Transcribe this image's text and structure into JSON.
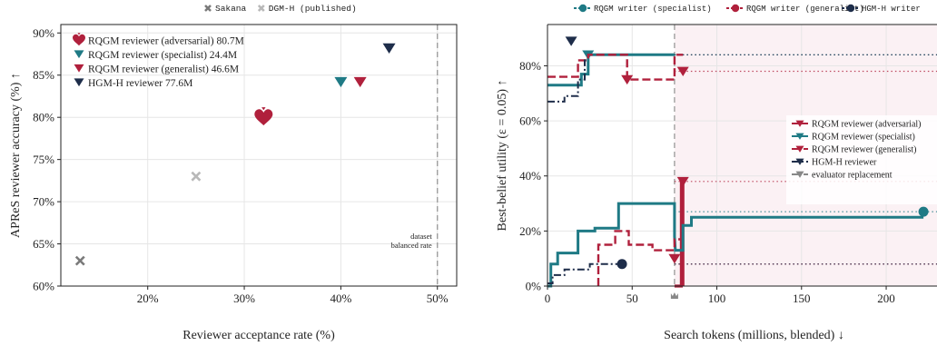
{
  "top_legends": {
    "left": [
      {
        "label": "Sakana",
        "color": "#7a7a7a",
        "marker": "x"
      },
      {
        "label": "DGM-H (published)",
        "color": "#b8b8b8",
        "marker": "x"
      }
    ],
    "right": [
      {
        "label": "RQGM writer (specialist)",
        "color": "#1f7a85",
        "marker": "circle"
      },
      {
        "label": "RQGM writer (generalist)",
        "color": "#b0203c",
        "marker": "circle"
      },
      {
        "label": "HGM-H writer",
        "color": "#1e2d4a",
        "marker": "circle"
      }
    ]
  },
  "chart_data": [
    {
      "type": "scatter",
      "xlabel": "Reviewer acceptance rate (%)",
      "ylabel": "APReS reviewer accuracy (%) ↑",
      "xlim": [
        11,
        52
      ],
      "ylim": [
        60,
        91
      ],
      "xticks": [
        20,
        30,
        40,
        50
      ],
      "yticks": [
        60,
        65,
        70,
        75,
        80,
        85,
        90
      ],
      "grid": true,
      "legend_position": "top-left",
      "reference_line": {
        "x": 50,
        "label_lines": [
          "dataset",
          "balanced rate"
        ]
      },
      "series": [
        {
          "name": "RQGM reviewer (adversarial)",
          "legend_value": "80.7M",
          "marker": "heart",
          "color": "#b0203c",
          "points": [
            [
              32,
              80
            ]
          ]
        },
        {
          "name": "RQGM reviewer (specialist)",
          "legend_value": "24.4M",
          "marker": "triangle-down",
          "color": "#1f7a85",
          "points": [
            [
              40,
              84.2
            ]
          ]
        },
        {
          "name": "RQGM reviewer (generalist)",
          "legend_value": "46.6M",
          "marker": "triangle-down",
          "color": "#b0203c",
          "points": [
            [
              42,
              84.2
            ]
          ]
        },
        {
          "name": "HGM-H reviewer",
          "legend_value": "77.6M",
          "marker": "triangle-down",
          "color": "#1e2d4a",
          "points": [
            [
              45,
              88.2
            ]
          ]
        },
        {
          "name": "Sakana",
          "marker": "x",
          "color": "#7a7a7a",
          "points": [
            [
              13,
              63
            ]
          ]
        },
        {
          "name": "DGM-H (published)",
          "marker": "x",
          "color": "#b8b8b8",
          "points": [
            [
              25,
              73
            ]
          ]
        }
      ]
    },
    {
      "type": "line",
      "step": true,
      "xlabel": "Search tokens (millions, blended) ↓",
      "ylabel": "Best-belief utility (ε = 0.05) ↑",
      "xlim": [
        0,
        230
      ],
      "ylim": [
        0,
        95
      ],
      "xticks": [
        0,
        50,
        100,
        150,
        200
      ],
      "yticks": [
        0,
        20,
        40,
        60,
        80
      ],
      "ytick_suffix": "%",
      "grid": true,
      "legend_position": "right",
      "evaluator_replacement_x": 75,
      "series": [
        {
          "name": "RQGM reviewer (adversarial)",
          "color": "#b0203c",
          "dash": "solid",
          "width": 3.2,
          "points": [
            [
              75,
              0
            ],
            [
              79,
              0
            ],
            [
              79,
              38
            ],
            [
              80,
              38
            ],
            [
              80,
              0
            ]
          ],
          "markers": [
            [
              80,
              38,
              "v"
            ]
          ],
          "continuation": 38
        },
        {
          "name": "RQGM reviewer (specialist)",
          "color": "#1f7a85",
          "dash": "solid",
          "width": 3,
          "points": [
            [
              0,
              0
            ],
            [
              2,
              0
            ],
            [
              2,
              8
            ],
            [
              6,
              8
            ],
            [
              6,
              12
            ],
            [
              18,
              12
            ],
            [
              18,
              20
            ],
            [
              28,
              20
            ],
            [
              28,
              21
            ],
            [
              42,
              21
            ],
            [
              42,
              30
            ],
            [
              75,
              30
            ],
            [
              75,
              18
            ],
            [
              75.5,
              13
            ],
            [
              80,
              13
            ],
            [
              80,
              22
            ],
            [
              85,
              22
            ],
            [
              85,
              25
            ],
            [
              222,
              25
            ]
          ],
          "markers": [
            [
              222,
              27,
              "o"
            ]
          ],
          "continuation": 27
        },
        {
          "name": "RQGM reviewer (specialist)",
          "color": "#1f7a85",
          "dash": "solid",
          "width": 3,
          "points": [
            [
              0,
              73
            ],
            [
              20,
              73
            ],
            [
              20,
              77
            ],
            [
              24,
              77
            ],
            [
              24,
              84
            ],
            [
              75,
              84
            ]
          ],
          "markers": [
            [
              24,
              84,
              "v"
            ]
          ],
          "continuation": 84
        },
        {
          "name": "RQGM reviewer (generalist)",
          "color": "#b0203c",
          "dash": "dash",
          "width": 2.4,
          "points": [
            [
              0,
              76
            ],
            [
              18,
              76
            ],
            [
              18,
              82
            ],
            [
              24,
              82
            ],
            [
              24,
              84
            ],
            [
              47,
              84
            ],
            [
              47,
              75
            ],
            [
              75,
              75
            ],
            [
              75,
              84
            ],
            [
              80,
              84
            ]
          ],
          "markers": [
            [
              80,
              78,
              "v"
            ],
            [
              47,
              75,
              "v"
            ]
          ],
          "continuation": 78
        },
        {
          "name": "RQGM reviewer (generalist)",
          "color": "#b0203c",
          "dash": "dash",
          "width": 2.4,
          "points": [
            [
              30,
              0
            ],
            [
              30,
              15
            ],
            [
              40,
              15
            ],
            [
              40,
              20
            ],
            [
              48,
              20
            ],
            [
              48,
              15
            ],
            [
              62,
              15
            ],
            [
              62,
              13
            ],
            [
              75,
              13
            ],
            [
              75,
              17
            ],
            [
              79,
              17
            ]
          ],
          "markers": [
            [
              75,
              10,
              "v"
            ]
          ],
          "continuation": 8
        },
        {
          "name": "HGM-H reviewer",
          "color": "#1e2d4a",
          "dash": "dashdot",
          "width": 2,
          "points": [
            [
              0,
              67
            ],
            [
              10,
              67
            ],
            [
              10,
              69
            ],
            [
              18,
              69
            ],
            [
              18,
              75
            ],
            [
              22,
              75
            ],
            [
              22,
              82
            ],
            [
              24,
              82
            ]
          ],
          "markers": [
            [
              14,
              89,
              "v"
            ]
          ],
          "continuation": 84
        },
        {
          "name": "HGM-H reviewer",
          "color": "#1e2d4a",
          "dash": "dashdot",
          "width": 2,
          "points": [
            [
              0,
              1
            ],
            [
              3,
              1
            ],
            [
              3,
              4
            ],
            [
              10,
              4
            ],
            [
              10,
              6
            ],
            [
              25,
              6
            ],
            [
              25,
              8
            ],
            [
              44,
              8
            ]
          ],
          "markers": [
            [
              44,
              8,
              "o"
            ]
          ],
          "continuation": 8
        }
      ],
      "legend": [
        {
          "label": "RQGM reviewer (adversarial)",
          "color": "#b0203c",
          "dash": "solid"
        },
        {
          "label": "RQGM reviewer (specialist)",
          "color": "#1f7a85",
          "dash": "solid"
        },
        {
          "label": "RQGM reviewer (generalist)",
          "color": "#b0203c",
          "dash": "dash"
        },
        {
          "label": "HGM-H reviewer",
          "color": "#1e2d4a",
          "dash": "dashdot"
        },
        {
          "label": "evaluator replacement",
          "color": "#888888",
          "dash": "dash"
        }
      ]
    }
  ]
}
